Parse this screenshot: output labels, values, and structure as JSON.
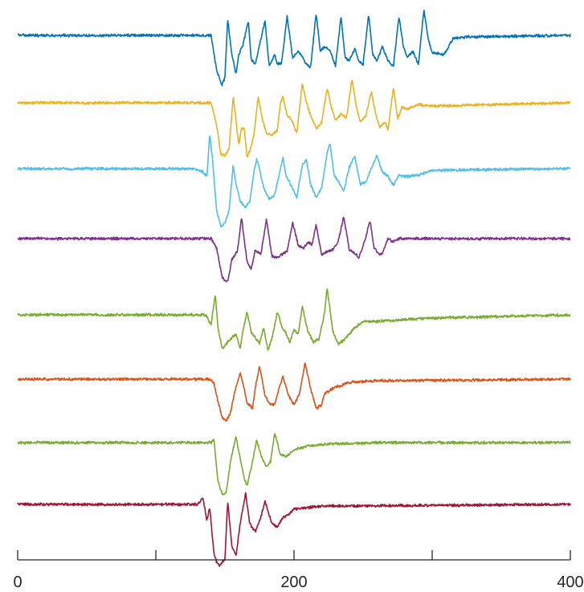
{
  "chart_data": {
    "type": "line",
    "title": "",
    "xlabel": "",
    "ylabel": "",
    "xlim": [
      0,
      400
    ],
    "xticks": [
      0,
      100,
      200,
      300,
      400
    ],
    "xtick_labels": [
      "0",
      "",
      "200",
      "",
      "400"
    ],
    "grid": false,
    "legend": "none",
    "layout": "stacked traces",
    "series": [
      {
        "color": "#0072BD",
        "shape": [
          [
            0,
            0
          ],
          [
            140,
            0
          ],
          [
            144,
            1.1
          ],
          [
            148,
            1.55
          ],
          [
            150,
            1.3
          ],
          [
            152,
            -0.5
          ],
          [
            155,
            0.6
          ],
          [
            158,
            1.2
          ],
          [
            160,
            0.6
          ],
          [
            163,
            0.3
          ],
          [
            167,
            -0.45
          ],
          [
            169,
            0.75
          ],
          [
            172,
            0.9
          ],
          [
            175,
            0.3
          ],
          [
            179,
            -0.45
          ],
          [
            182,
            0.95
          ],
          [
            186,
            0.6
          ],
          [
            188,
            0.9
          ],
          [
            191,
            0.85
          ],
          [
            195,
            -0.6
          ],
          [
            199,
            0.7
          ],
          [
            203,
            0.5
          ],
          [
            205,
            0.6
          ],
          [
            209,
            0.9
          ],
          [
            212,
            1.0
          ],
          [
            216,
            -0.7
          ],
          [
            219,
            0.5
          ],
          [
            222,
            0.35
          ],
          [
            226,
            0.45
          ],
          [
            230,
            0.95
          ],
          [
            234,
            -0.6
          ],
          [
            237,
            0.7
          ],
          [
            240,
            0.8
          ],
          [
            244,
            0.4
          ],
          [
            247,
            0.8
          ],
          [
            250,
            0.9
          ],
          [
            254,
            -0.65
          ],
          [
            257,
            0.6
          ],
          [
            260,
            0.8
          ],
          [
            264,
            0.35
          ],
          [
            268,
            0.8
          ],
          [
            272,
            0.95
          ],
          [
            276,
            -0.6
          ],
          [
            279,
            0.3
          ],
          [
            282,
            0.7
          ],
          [
            286,
            0.5
          ],
          [
            290,
            0.9
          ],
          [
            294,
            -0.8
          ],
          [
            297,
            0.1
          ],
          [
            300,
            0.55
          ],
          [
            304,
            0.55
          ],
          [
            308,
            0.6
          ],
          [
            310,
            0.5
          ],
          [
            315,
            0.1
          ],
          [
            325,
            0.05
          ],
          [
            400,
            0
          ]
        ]
      },
      {
        "color": "#EDB120",
        "shape": [
          [
            0,
            0
          ],
          [
            140,
            0
          ],
          [
            144,
            0.7
          ],
          [
            147,
            1.6
          ],
          [
            150,
            1.65
          ],
          [
            153,
            1.45
          ],
          [
            156,
            -0.2
          ],
          [
            158,
            0.5
          ],
          [
            160,
            1.3
          ],
          [
            162,
            0.8
          ],
          [
            164,
            0.8
          ],
          [
            166,
            1.7
          ],
          [
            168,
            1.5
          ],
          [
            171,
            1.0
          ],
          [
            174,
            -0.2
          ],
          [
            177,
            0.5
          ],
          [
            180,
            0.95
          ],
          [
            184,
            1.0
          ],
          [
            188,
            0.85
          ],
          [
            190,
            0.05
          ],
          [
            192,
            -0.2
          ],
          [
            195,
            0.4
          ],
          [
            198,
            0.5
          ],
          [
            202,
            0.95
          ],
          [
            206,
            -0.6
          ],
          [
            209,
            0.0
          ],
          [
            212,
            0.4
          ],
          [
            216,
            0.8
          ],
          [
            220,
            0.6
          ],
          [
            224,
            -0.45
          ],
          [
            227,
            0.15
          ],
          [
            230,
            0.55
          ],
          [
            234,
            0.35
          ],
          [
            238,
            0.45
          ],
          [
            242,
            -0.75
          ],
          [
            245,
            0.1
          ],
          [
            248,
            0.6
          ],
          [
            252,
            0.4
          ],
          [
            256,
            -0.35
          ],
          [
            259,
            0.35
          ],
          [
            262,
            0.75
          ],
          [
            266,
            0.6
          ],
          [
            268,
            0.85
          ],
          [
            272,
            -0.5
          ],
          [
            275,
            0.5
          ],
          [
            278,
            0.15
          ],
          [
            282,
            0.2
          ],
          [
            290,
            0.05
          ],
          [
            300,
            0.1
          ],
          [
            400,
            0
          ]
        ]
      },
      {
        "color": "#4DBEEE",
        "shape": [
          [
            0,
            0
          ],
          [
            128,
            0
          ],
          [
            134,
            0.1
          ],
          [
            137,
            0.25
          ],
          [
            139,
            -1.1
          ],
          [
            141,
            -0.3
          ],
          [
            144,
            1.3
          ],
          [
            147,
            1.8
          ],
          [
            150,
            1.7
          ],
          [
            153,
            1.3
          ],
          [
            156,
            -0.1
          ],
          [
            158,
            0.5
          ],
          [
            161,
            1.0
          ],
          [
            165,
            1.2
          ],
          [
            168,
            1.0
          ],
          [
            171,
            0.1
          ],
          [
            173,
            -0.3
          ],
          [
            175,
            0.0
          ],
          [
            178,
            0.6
          ],
          [
            182,
            0.95
          ],
          [
            186,
            0.8
          ],
          [
            190,
            0.05
          ],
          [
            192,
            -0.35
          ],
          [
            194,
            0.2
          ],
          [
            197,
            0.45
          ],
          [
            202,
            0.9
          ],
          [
            206,
            -0.1
          ],
          [
            209,
            -0.3
          ],
          [
            212,
            0.5
          ],
          [
            216,
            0.9
          ],
          [
            220,
            0.6
          ],
          [
            224,
            -0.5
          ],
          [
            226,
            -0.8
          ],
          [
            229,
            0.2
          ],
          [
            232,
            0.4
          ],
          [
            236,
            0.7
          ],
          [
            240,
            -0.05
          ],
          [
            244,
            -0.4
          ],
          [
            248,
            0.5
          ],
          [
            252,
            0.4
          ],
          [
            256,
            0.0
          ],
          [
            260,
            -0.4
          ],
          [
            264,
            0.1
          ],
          [
            268,
            0.25
          ],
          [
            272,
            0.5
          ],
          [
            276,
            0.2
          ],
          [
            280,
            0.25
          ],
          [
            290,
            0.2
          ],
          [
            300,
            0.05
          ],
          [
            400,
            0
          ]
        ]
      },
      {
        "color": "#7E2F8E",
        "shape": [
          [
            0,
            0
          ],
          [
            140,
            0
          ],
          [
            144,
            0.3
          ],
          [
            148,
            1.2
          ],
          [
            152,
            1.35
          ],
          [
            155,
            0.65
          ],
          [
            159,
            0.4
          ],
          [
            162,
            -0.65
          ],
          [
            166,
            0.7
          ],
          [
            169,
            0.95
          ],
          [
            172,
            0.35
          ],
          [
            176,
            0.5
          ],
          [
            180,
            -0.6
          ],
          [
            184,
            0.55
          ],
          [
            188,
            0.6
          ],
          [
            191,
            0.5
          ],
          [
            195,
            0.4
          ],
          [
            199,
            -0.5
          ],
          [
            203,
            0.2
          ],
          [
            207,
            0.3
          ],
          [
            210,
            0.1
          ],
          [
            213,
            0.2
          ],
          [
            216,
            -0.45
          ],
          [
            220,
            0.5
          ],
          [
            224,
            0.4
          ],
          [
            228,
            0.35
          ],
          [
            232,
            0.1
          ],
          [
            236,
            -0.7
          ],
          [
            240,
            0.35
          ],
          [
            244,
            0.45
          ],
          [
            247,
            0.6
          ],
          [
            251,
            0.1
          ],
          [
            255,
            -0.55
          ],
          [
            258,
            0.3
          ],
          [
            262,
            0.5
          ],
          [
            264,
            0.45
          ],
          [
            268,
            0.0
          ],
          [
            272,
            0.1
          ],
          [
            276,
            0.0
          ],
          [
            400,
            0
          ]
        ]
      },
      {
        "color": "#77AC30",
        "shape": [
          [
            0,
            0
          ],
          [
            136,
            0
          ],
          [
            140,
            0.3
          ],
          [
            143,
            -0.65
          ],
          [
            145,
            0.4
          ],
          [
            148,
            1.05
          ],
          [
            151,
            0.9
          ],
          [
            155,
            0.7
          ],
          [
            158,
            0.6
          ],
          [
            161,
            1.05
          ],
          [
            163,
            0.5
          ],
          [
            166,
            -0.1
          ],
          [
            169,
            0.55
          ],
          [
            172,
            0.7
          ],
          [
            175,
            0.9
          ],
          [
            178,
            0.4
          ],
          [
            181,
            1.1
          ],
          [
            184,
            0.75
          ],
          [
            188,
            -0.1
          ],
          [
            191,
            0.35
          ],
          [
            194,
            0.55
          ],
          [
            197,
            0.85
          ],
          [
            200,
            0.45
          ],
          [
            203,
            0.6
          ],
          [
            206,
            -0.25
          ],
          [
            210,
            0.5
          ],
          [
            214,
            0.85
          ],
          [
            218,
            0.75
          ],
          [
            222,
            -0.05
          ],
          [
            224,
            -0.85
          ],
          [
            228,
            0.5
          ],
          [
            232,
            0.9
          ],
          [
            236,
            0.8
          ],
          [
            240,
            0.6
          ],
          [
            244,
            0.4
          ],
          [
            250,
            0.2
          ],
          [
            260,
            0.2
          ],
          [
            300,
            0.1
          ],
          [
            400,
            0
          ]
        ]
      },
      {
        "color": "#D95319",
        "shape": [
          [
            0,
            0
          ],
          [
            138,
            0
          ],
          [
            142,
            0.1
          ],
          [
            145,
            0.7
          ],
          [
            148,
            1.2
          ],
          [
            151,
            1.3
          ],
          [
            154,
            1.05
          ],
          [
            157,
            0.4
          ],
          [
            161,
            -0.2
          ],
          [
            164,
            0.3
          ],
          [
            166,
            0.75
          ],
          [
            170,
            0.9
          ],
          [
            172,
            0.25
          ],
          [
            175,
            -0.4
          ],
          [
            179,
            0.5
          ],
          [
            182,
            0.75
          ],
          [
            186,
            0.8
          ],
          [
            189,
            0.3
          ],
          [
            192,
            -0.1
          ],
          [
            196,
            0.5
          ],
          [
            200,
            0.8
          ],
          [
            204,
            0.45
          ],
          [
            208,
            -0.5
          ],
          [
            212,
            0.3
          ],
          [
            216,
            0.9
          ],
          [
            220,
            0.8
          ],
          [
            222,
            0.45
          ],
          [
            230,
            0.25
          ],
          [
            240,
            0.1
          ],
          [
            260,
            0.05
          ],
          [
            400,
            0
          ]
        ]
      },
      {
        "color": "#77AC30",
        "shape": [
          [
            0,
            0
          ],
          [
            136,
            0
          ],
          [
            140,
            0.0
          ],
          [
            142,
            -0.1
          ],
          [
            145,
            1.2
          ],
          [
            148,
            1.6
          ],
          [
            151,
            1.55
          ],
          [
            154,
            0.6
          ],
          [
            158,
            -0.2
          ],
          [
            161,
            0.5
          ],
          [
            164,
            1.1
          ],
          [
            166,
            1.35
          ],
          [
            169,
            0.8
          ],
          [
            173,
            -0.1
          ],
          [
            176,
            0.4
          ],
          [
            180,
            0.75
          ],
          [
            183,
            0.6
          ],
          [
            186,
            -0.3
          ],
          [
            190,
            0.35
          ],
          [
            194,
            0.45
          ],
          [
            198,
            0.3
          ],
          [
            202,
            0.2
          ],
          [
            210,
            0.1
          ],
          [
            225,
            0.05
          ],
          [
            260,
            0.0
          ],
          [
            400,
            0
          ]
        ]
      },
      {
        "color": "#A2142F",
        "shape": [
          [
            0,
            0
          ],
          [
            130,
            0
          ],
          [
            134,
            -0.2
          ],
          [
            137,
            0.5
          ],
          [
            139,
            0.1
          ],
          [
            142,
            1.5
          ],
          [
            144,
            1.8
          ],
          [
            146,
            1.9
          ],
          [
            150,
            1.7
          ],
          [
            152,
            -0.1
          ],
          [
            155,
            1.3
          ],
          [
            158,
            1.6
          ],
          [
            161,
            0.6
          ],
          [
            165,
            -0.35
          ],
          [
            168,
            0.6
          ],
          [
            172,
            0.85
          ],
          [
            176,
            0.4
          ],
          [
            179,
            -0.1
          ],
          [
            184,
            0.6
          ],
          [
            188,
            0.7
          ],
          [
            192,
            0.4
          ],
          [
            196,
            0.3
          ],
          [
            200,
            0.15
          ],
          [
            210,
            0.1
          ],
          [
            220,
            0.05
          ],
          [
            400,
            0
          ]
        ]
      }
    ]
  }
}
